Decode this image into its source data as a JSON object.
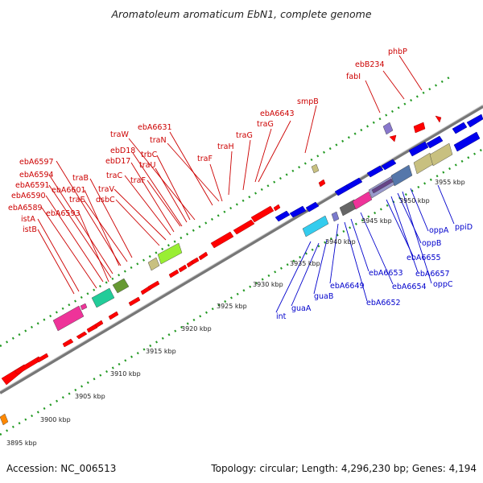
{
  "title": "Aromatoleum aromaticum EbN1, complete genome",
  "footer": {
    "accession": "Accession: NC_006513",
    "summary": "Topology: circular; Length: 4,296,230 bp; Genes: 4,194"
  },
  "colors": {
    "forward_gene": "#ff0000",
    "reverse_gene": "#0000ee",
    "backbone": "#888888",
    "tick": "#22aa22",
    "label_red": "#cc0000",
    "label_blue": "#0000cc"
  },
  "scale_labels": [
    "3895 kbp",
    "3900 kbp",
    "3905 kbp",
    "3910 kbp",
    "3915 kbp",
    "3920 kbp",
    "3925 kbp",
    "3930 kbp",
    "3935 kbp",
    "3940 kbp",
    "3945 kbp",
    "3950 kbp",
    "3955 kbp"
  ],
  "red_labels": [
    "phbP",
    "ebB234",
    "fabI",
    "smpB",
    "ebA6643",
    "traG",
    "traG",
    "traH",
    "traF",
    "traN",
    "ebA6631",
    "traW",
    "trbC",
    "traU",
    "traF",
    "ebD18",
    "ebD17",
    "traC",
    "traV",
    "dsbC",
    "traB",
    "traE",
    "ebA6597",
    "ebA6594",
    "ebA6591",
    "ebA6590",
    "ebA6601",
    "ebA6593",
    "ebA6589",
    "istA",
    "istB"
  ],
  "blue_labels": [
    "ppiD",
    "oppA",
    "oppB",
    "ebA6655",
    "ebA6657",
    "oppC",
    "ebA6653",
    "ebA6654",
    "ebA6649",
    "ebA6652",
    "guaB",
    "guaA",
    "int"
  ]
}
